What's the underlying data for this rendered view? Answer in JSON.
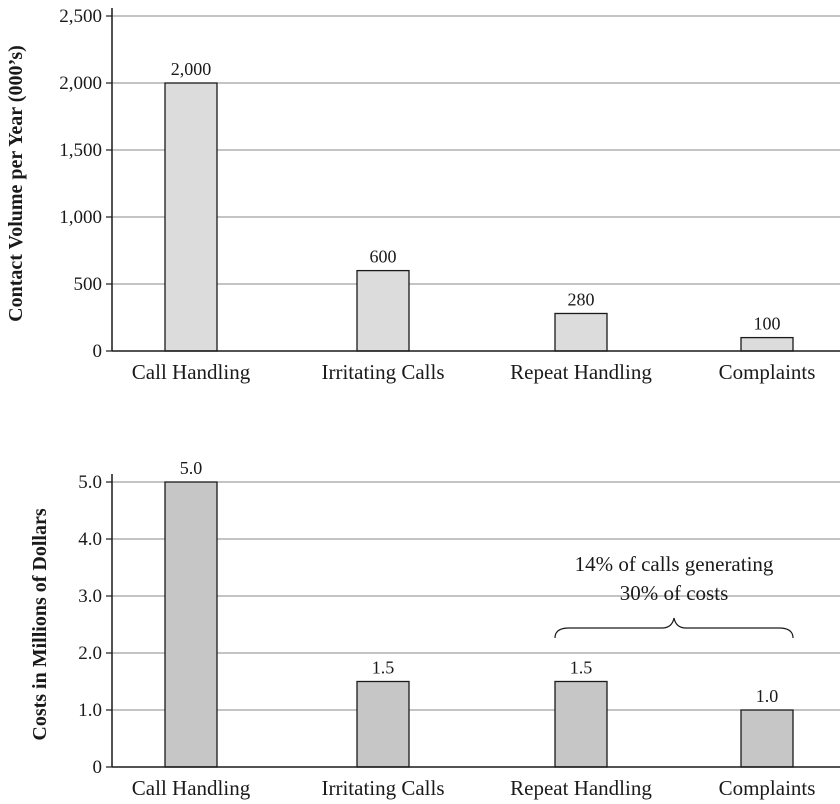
{
  "chart_data": [
    {
      "type": "bar",
      "title": "",
      "xlabel": "",
      "ylabel": "Contact Volume per Year (000’s)",
      "categories": [
        "Call Handling",
        "Irritating Calls",
        "Repeat Handling",
        "Complaints"
      ],
      "values": [
        2000,
        600,
        280,
        100
      ],
      "value_labels": [
        "2,000",
        "600",
        "280",
        "100"
      ],
      "ylim": [
        0,
        2500
      ],
      "yticks": [
        0,
        500,
        1000,
        1500,
        2000,
        2500
      ],
      "ytick_labels": [
        "0",
        "500",
        "1,000",
        "1,500",
        "2,000",
        "2,500"
      ],
      "grid": true,
      "bar_color": "#dcdcdc"
    },
    {
      "type": "bar",
      "title": "",
      "xlabel": "",
      "ylabel": "Costs in Millions of Dollars",
      "categories": [
        "Call Handling",
        "Irritating Calls",
        "Repeat Handling",
        "Complaints"
      ],
      "values": [
        5.0,
        1.5,
        1.5,
        1.0
      ],
      "value_labels": [
        "5.0",
        "1.5",
        "1.5",
        "1.0"
      ],
      "ylim": [
        0,
        5
      ],
      "yticks": [
        0,
        1,
        2,
        3,
        4,
        5
      ],
      "ytick_labels": [
        "0",
        "1.0",
        "2.0",
        "3.0",
        "4.0",
        "5.0"
      ],
      "grid": true,
      "bar_color": "#c6c6c6",
      "annotation": {
        "lines": [
          "14% of calls generating",
          "30% of costs"
        ],
        "brace_categories": [
          "Repeat Handling",
          "Complaints"
        ]
      }
    }
  ],
  "colors": {
    "bar_outline": "#1a1a1a",
    "gridline": "#8a8a8a",
    "axis": "#1a1a1a",
    "text": "#1a1a1a"
  }
}
